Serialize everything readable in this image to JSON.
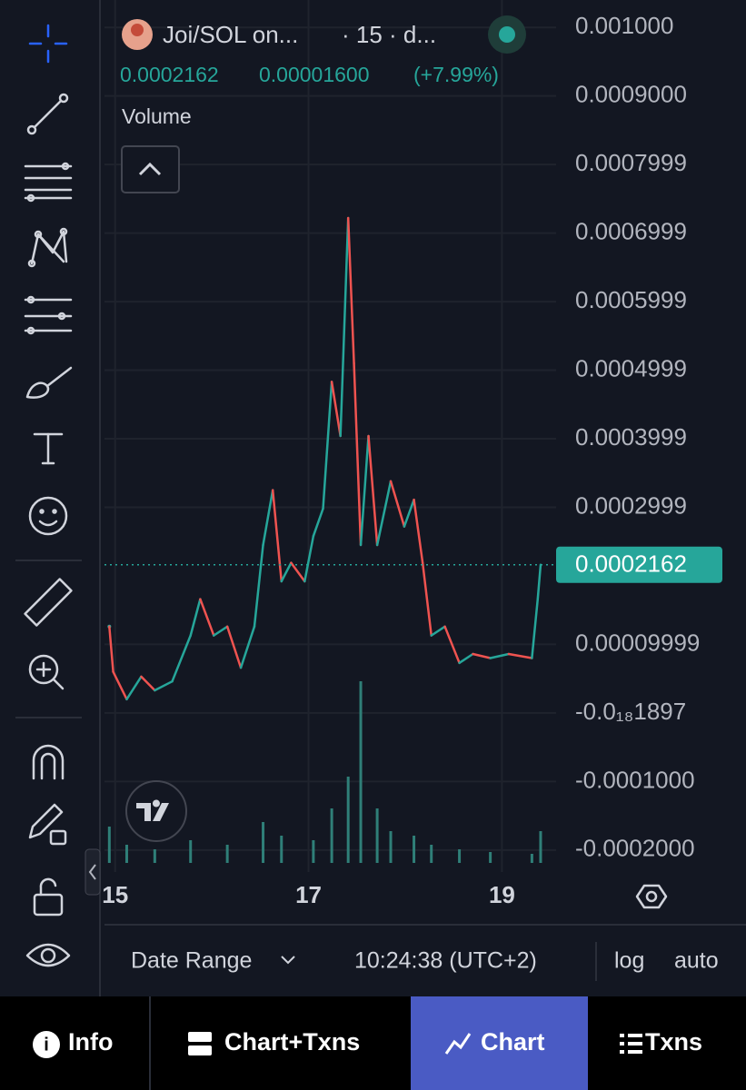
{
  "header": {
    "symbol": "Joi/SOL on...",
    "interval": "· 15 · d...",
    "price": "0.0002162",
    "change": "0.00001600",
    "change_pct": "(+7.99%)",
    "indicator": "Volume"
  },
  "chart_data": {
    "type": "line",
    "x": [
      14.94,
      14.98,
      15.12,
      15.27,
      15.41,
      15.59,
      15.78,
      15.88,
      16.02,
      16.16,
      16.3,
      16.44,
      16.53,
      16.63,
      16.72,
      16.82,
      16.96,
      17.05,
      17.15,
      17.24,
      17.33,
      17.41,
      17.47,
      17.54,
      17.62,
      17.71,
      17.85,
      17.99,
      18.09,
      18.18,
      18.27,
      18.41,
      18.56,
      18.7,
      18.88,
      19.07,
      19.31,
      19.37,
      19.4
    ],
    "values": [
      0.000126,
      6e-05,
      2e-05,
      5.3e-05,
      3.3e-05,
      4.6e-05,
      0.000113,
      0.000166,
      0.000113,
      0.000126,
      6.6e-05,
      0.000126,
      0.000245,
      0.000325,
      0.000192,
      0.000219,
      0.000192,
      0.000258,
      0.000298,
      0.000483,
      0.000404,
      0.000722,
      0.00051,
      0.000245,
      0.000404,
      0.000245,
      0.000338,
      0.000272,
      0.000311,
      0.000219,
      0.000113,
      0.000126,
      7.3e-05,
      8.6e-05,
      8e-05,
      8.6e-05,
      8e-05,
      0.000166,
      0.0002162
    ],
    "up_color": "#26a69a",
    "down_color": "#ef5350",
    "xlim": [
      14.89,
      19.56
    ],
    "xticks": [
      15,
      17,
      19
    ],
    "ylim": [
      -0.000232,
      0.00104
    ],
    "yticks": [
      {
        "value": 0.001,
        "label": "0.001000"
      },
      {
        "value": 0.0009,
        "label": "0.0009000"
      },
      {
        "value": 0.0008,
        "label": "0.0007999"
      },
      {
        "value": 0.0007,
        "label": "0.0006999"
      },
      {
        "value": 0.0006,
        "label": "0.0005999"
      },
      {
        "value": 0.0005,
        "label": "0.0004999"
      },
      {
        "value": 0.0004,
        "label": "0.0003999"
      },
      {
        "value": 0.0003,
        "label": "0.0002999"
      },
      {
        "value": 0.0001,
        "label": "0.00009999"
      },
      {
        "value": -1.897e-20,
        "label": "-0.0₁₈1897"
      },
      {
        "value": -0.0001,
        "label": "-0.0001000"
      },
      {
        "value": -0.0002,
        "label": "-0.0002000"
      }
    ],
    "grid": true,
    "last_price": {
      "value": 0.0002162,
      "label": "0.0002162",
      "color": "#26a69a"
    },
    "volume": {
      "x": [
        14.94,
        15.12,
        15.41,
        15.78,
        16.16,
        16.53,
        16.72,
        17.05,
        17.24,
        17.41,
        17.54,
        17.71,
        17.85,
        18.09,
        18.27,
        18.56,
        18.88,
        19.31,
        19.4
      ],
      "values": [
        40,
        20,
        15,
        25,
        20,
        45,
        30,
        25,
        60,
        95,
        200,
        60,
        35,
        30,
        20,
        15,
        12,
        10,
        35
      ],
      "ylim": [
        0,
        300
      ],
      "color": "#2f7f78"
    }
  },
  "footer": {
    "date_range": "Date Range",
    "time": "10:24:38 (UTC+2)",
    "log": "log",
    "auto": "auto"
  },
  "tabs": [
    "Info",
    "Chart+Txns",
    "Chart",
    "Txns"
  ],
  "active_tab": 2
}
